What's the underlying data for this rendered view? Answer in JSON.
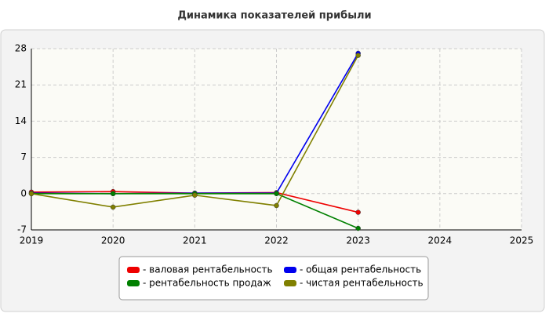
{
  "chart_data": {
    "type": "line",
    "title": "Динамика показателей прибыли",
    "x": [
      2019,
      2020,
      2021,
      2022,
      2023
    ],
    "series": [
      {
        "name": "- валовая рентабельность",
        "color": "#ee0000",
        "values": [
          0.3,
          0.4,
          0.1,
          0.2,
          -3.6
        ]
      },
      {
        "name": "- общая рентабельность",
        "color": "#0000ee",
        "values": [
          0.1,
          0,
          0.1,
          0.1,
          27.1
        ]
      },
      {
        "name": "- рентабельность продаж",
        "color": "#008000",
        "values": [
          0,
          0,
          0,
          0,
          -6.7
        ]
      },
      {
        "name": "- чистая рентабельность",
        "color": "#808000",
        "values": [
          0,
          -2.6,
          -0.3,
          -2.3,
          26.7
        ]
      }
    ],
    "xlim": [
      2019,
      2025
    ],
    "xticks": [
      2019,
      2020,
      2021,
      2022,
      2023,
      2024,
      2025
    ],
    "ylim": [
      -7,
      28
    ],
    "yticks": [
      -7,
      0,
      7,
      14,
      21,
      28
    ],
    "grid": true
  }
}
